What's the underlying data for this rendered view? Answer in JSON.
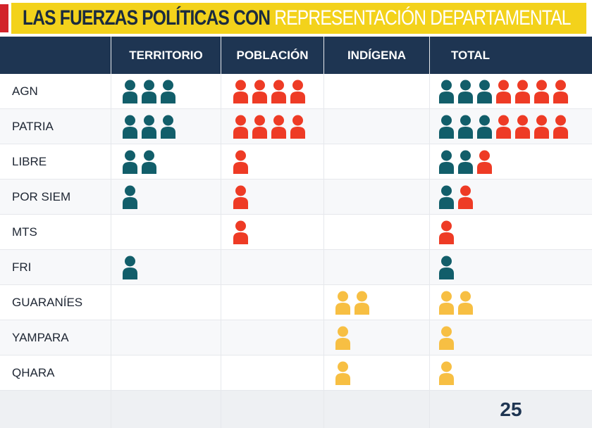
{
  "title": {
    "part1": "LAS FUERZAS POLÍTICAS CON",
    "part2": "REPRESENTACIÓN DEPARTAMENTAL"
  },
  "headers": [
    "",
    "TERRITORIO",
    "POBLACIÓN",
    "INDÍGENA",
    "TOTAL"
  ],
  "colors": {
    "territorio": "#125e6a",
    "poblacion": "#ee3b25",
    "indigena": "#f7bf43",
    "header": "#1e3552",
    "title_bg": "#f3d21b",
    "title_accent": "#d2232a"
  },
  "rows": [
    {
      "label": "AGN",
      "territorio": 3,
      "poblacion": 4,
      "indigena": 0
    },
    {
      "label": "PATRIA",
      "territorio": 3,
      "poblacion": 4,
      "indigena": 0
    },
    {
      "label": "LIBRE",
      "territorio": 2,
      "poblacion": 1,
      "indigena": 0
    },
    {
      "label": "POR SIEM",
      "territorio": 1,
      "poblacion": 1,
      "indigena": 0
    },
    {
      "label": "MTS",
      "territorio": 0,
      "poblacion": 1,
      "indigena": 0
    },
    {
      "label": "FRI",
      "territorio": 1,
      "poblacion": 0,
      "indigena": 0
    },
    {
      "label": "GUARANÍES",
      "territorio": 0,
      "poblacion": 0,
      "indigena": 2
    },
    {
      "label": "YAMPARA",
      "territorio": 0,
      "poblacion": 0,
      "indigena": 1
    },
    {
      "label": "QHARA",
      "territorio": 0,
      "poblacion": 0,
      "indigena": 1
    }
  ],
  "total": "25",
  "icon": "person-icon"
}
